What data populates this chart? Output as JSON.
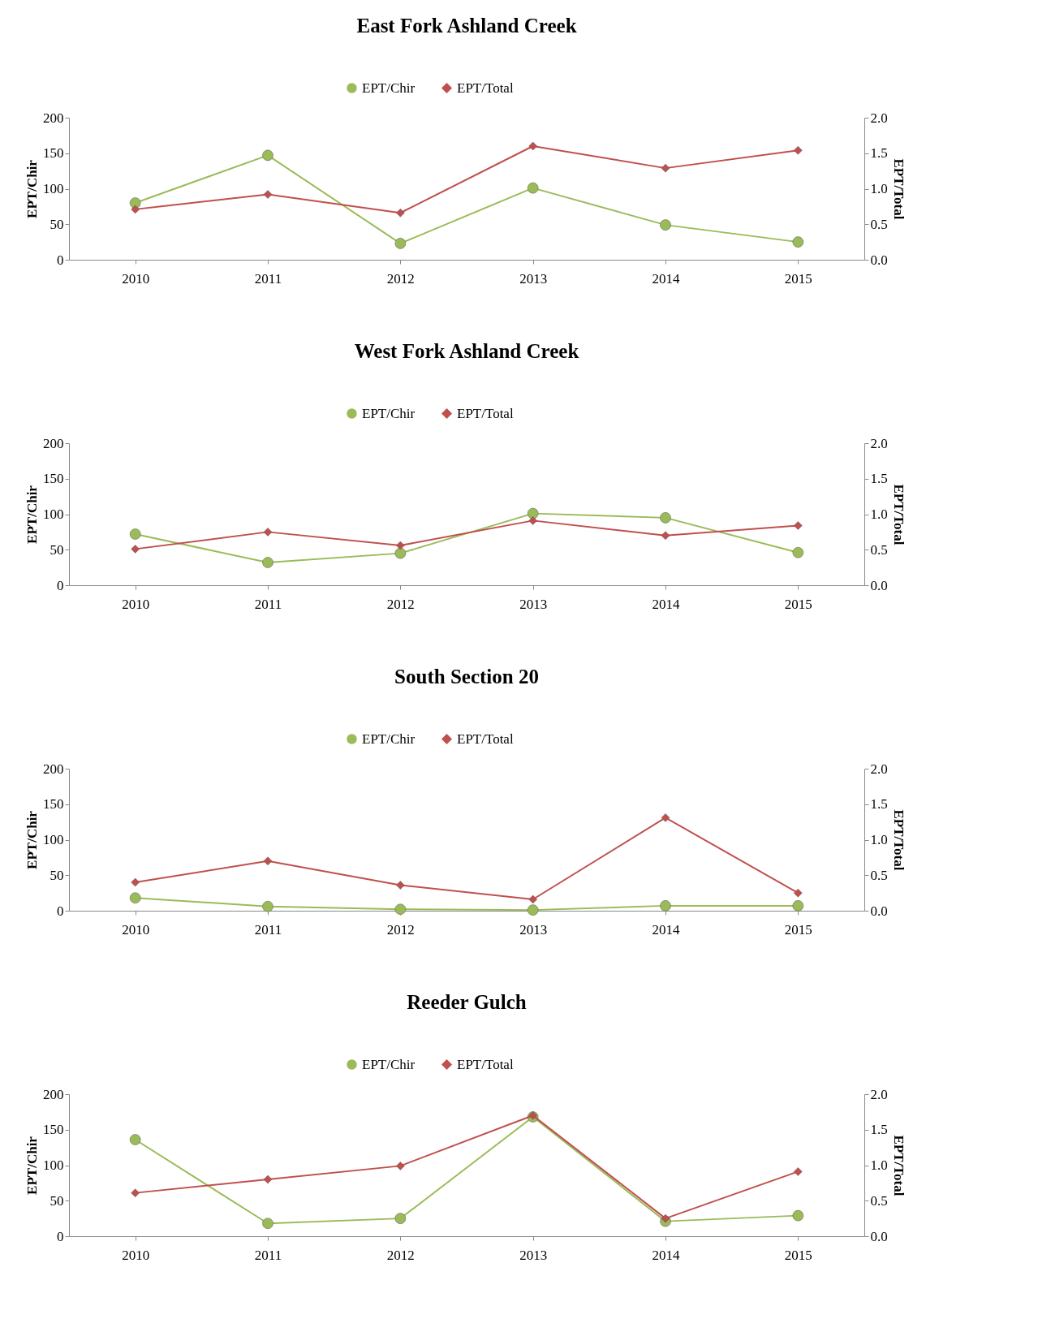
{
  "chart_data": [
    {
      "type": "line",
      "title": "East Fork Ashland Creek",
      "ylabel": "EPT/Chir",
      "y2label": "EPT/Total",
      "categories": [
        "2010",
        "2011",
        "2012",
        "2013",
        "2014",
        "2015"
      ],
      "legend": "top",
      "grid": false,
      "line_style": "solid",
      "ylim": [
        0,
        200
      ],
      "yticks": [
        0,
        50,
        100,
        150,
        200
      ],
      "y2lim": [
        0,
        2
      ],
      "y2ticks": [
        {
          "value": 0,
          "label": "0.0"
        },
        {
          "value": 0.5,
          "label": "0.5"
        },
        {
          "value": 1,
          "label": "1.0"
        },
        {
          "value": 1.5,
          "label": "1.5"
        },
        {
          "value": 2,
          "label": "2.0"
        }
      ],
      "series": [
        {
          "name": "EPT/Chir",
          "color": "#9bbb59",
          "marker": "circle",
          "values": [
            80,
            147,
            23,
            101,
            49,
            25
          ]
        },
        {
          "name": "EPT/Total",
          "color": "#c0504d",
          "marker": "diamond",
          "axis": "y2",
          "values": [
            0.71,
            0.92,
            0.66,
            1.6,
            1.29,
            1.54
          ]
        }
      ]
    },
    {
      "type": "line",
      "title": "West Fork Ashland Creek",
      "ylabel": "EPT/Chir",
      "y2label": "EPT/Total",
      "categories": [
        "2010",
        "2011",
        "2012",
        "2013",
        "2014",
        "2015"
      ],
      "legend": "top",
      "grid": false,
      "line_style": "solid",
      "ylim": [
        0,
        200
      ],
      "yticks": [
        0,
        50,
        100,
        150,
        200
      ],
      "y2lim": [
        0,
        2
      ],
      "y2ticks": [
        {
          "value": 0,
          "label": "0.0"
        },
        {
          "value": 0.5,
          "label": "0.5"
        },
        {
          "value": 1,
          "label": "1.0"
        },
        {
          "value": 1.5,
          "label": "1.5"
        },
        {
          "value": 2,
          "label": "2.0"
        }
      ],
      "series": [
        {
          "name": "EPT/Chir",
          "color": "#9bbb59",
          "marker": "circle",
          "values": [
            72,
            32,
            45,
            101,
            95,
            46
          ]
        },
        {
          "name": "EPT/Total",
          "color": "#c0504d",
          "marker": "diamond",
          "axis": "y2",
          "values": [
            0.51,
            0.75,
            0.56,
            0.91,
            0.7,
            0.84
          ]
        }
      ]
    },
    {
      "type": "line",
      "title": "South Section 20",
      "ylabel": "EPT/Chir",
      "y2label": "EPT/Total",
      "categories": [
        "2010",
        "2011",
        "2012",
        "2013",
        "2014",
        "2015"
      ],
      "legend": "top",
      "grid": false,
      "line_style": "solid",
      "ylim": [
        0,
        200
      ],
      "yticks": [
        0,
        50,
        100,
        150,
        200
      ],
      "y2lim": [
        0,
        2
      ],
      "y2ticks": [
        {
          "value": 0,
          "label": "0.0"
        },
        {
          "value": 0.5,
          "label": "0.5"
        },
        {
          "value": 1,
          "label": "1.0"
        },
        {
          "value": 1.5,
          "label": "1.5"
        },
        {
          "value": 2,
          "label": "2.0"
        }
      ],
      "series": [
        {
          "name": "EPT/Chir",
          "color": "#9bbb59",
          "marker": "circle",
          "values": [
            18,
            6,
            2,
            1,
            7,
            7
          ]
        },
        {
          "name": "EPT/Total",
          "color": "#c0504d",
          "marker": "diamond",
          "axis": "y2",
          "values": [
            0.4,
            0.7,
            0.36,
            0.16,
            1.31,
            0.25
          ]
        }
      ]
    },
    {
      "type": "line",
      "title": "Reeder Gulch",
      "ylabel": "EPT/Chir",
      "y2label": "EPT/Total",
      "categories": [
        "2010",
        "2011",
        "2012",
        "2013",
        "2014",
        "2015"
      ],
      "legend": "top",
      "grid": false,
      "line_style": "solid",
      "ylim": [
        0,
        200
      ],
      "yticks": [
        0,
        50,
        100,
        150,
        200
      ],
      "y2lim": [
        0,
        2
      ],
      "y2ticks": [
        {
          "value": 0,
          "label": "0.0"
        },
        {
          "value": 0.5,
          "label": "0.5"
        },
        {
          "value": 1,
          "label": "1.0"
        },
        {
          "value": 1.5,
          "label": "1.5"
        },
        {
          "value": 2,
          "label": "2.0"
        }
      ],
      "series": [
        {
          "name": "EPT/Chir",
          "color": "#9bbb59",
          "marker": "circle",
          "values": [
            136,
            18,
            25,
            168,
            21,
            29
          ]
        },
        {
          "name": "EPT/Total",
          "color": "#c0504d",
          "marker": "diamond",
          "axis": "y2",
          "values": [
            0.61,
            0.8,
            0.99,
            1.7,
            0.25,
            0.91
          ]
        }
      ]
    }
  ]
}
